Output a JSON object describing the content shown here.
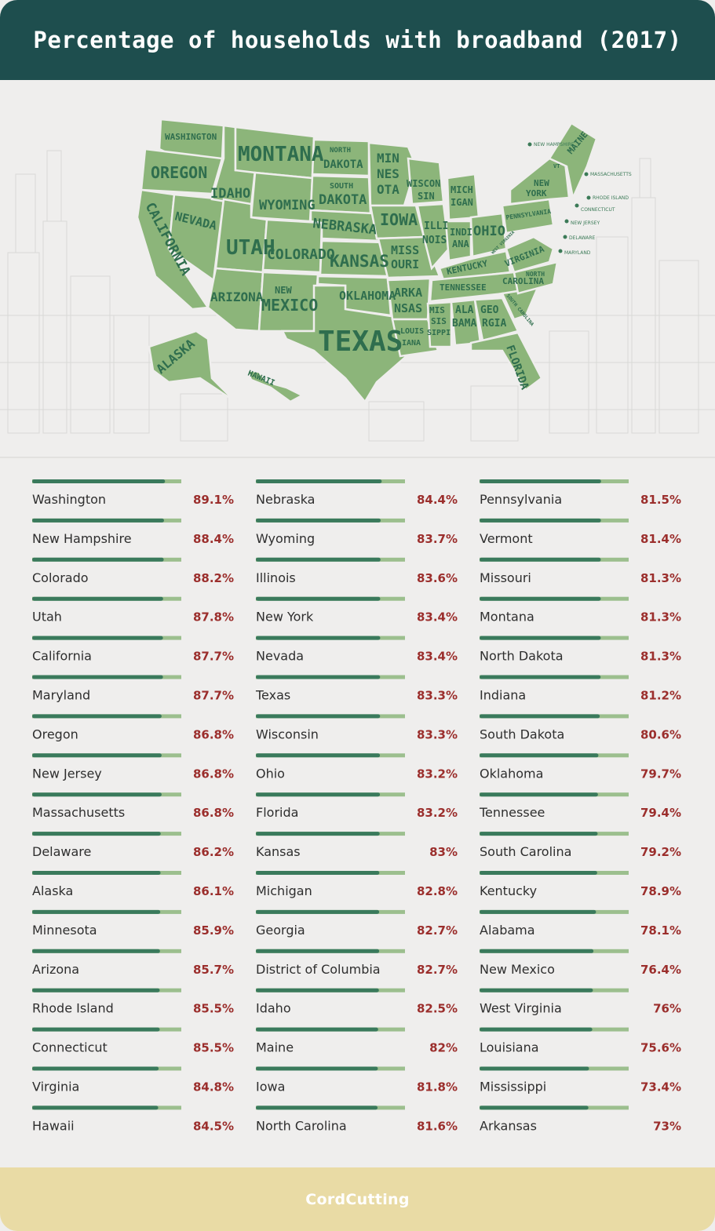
{
  "header": {
    "title": "Percentage of households with broadband (2017)"
  },
  "map": {
    "state_labels": {
      "washington": "WASHINGTON",
      "oregon": "OREGON",
      "california": "CALIFORNIA",
      "idaho": "IDAHO",
      "nevada": "NEVADA",
      "montana": "MONTANA",
      "wyoming": "WYOMING",
      "utah": "UTAH",
      "colorado": "COLORADO",
      "arizona": "ARIZONA",
      "new_mexico_1": "NEW",
      "new_mexico_2": "MEXICO",
      "north_dakota_1": "NORTH",
      "north_dakota_2": "DAKOTA",
      "south_dakota_1": "SOUTH",
      "south_dakota_2": "DAKOTA",
      "nebraska": "NEBRASKA",
      "kansas": "KANSAS",
      "oklahoma": "OKLAHOMA",
      "texas": "TEXAS",
      "minnesota_1": "MIN",
      "minnesota_2": "NES",
      "minnesota_3": "OTA",
      "iowa": "IOWA",
      "missouri_1": "MISS",
      "missouri_2": "OURI",
      "arkansas_1": "ARKA",
      "arkansas_2": "NSAS",
      "louisiana_1": "LOUIS",
      "louisiana_2": "IANA",
      "wisconsin_1": "WISCON",
      "wisconsin_2": "SIN",
      "illinois_1": "ILLI",
      "illinois_2": "NOIS",
      "michigan_1": "MICH",
      "michigan_2": "IGAN",
      "indiana_1": "INDI",
      "indiana_2": "ANA",
      "ohio": "OHIO",
      "kentucky": "KENTUCKY",
      "tennessee": "TENNESSEE",
      "mississippi_1": "MIS",
      "mississippi_2": "SIS",
      "mississippi_3": "SIPPI",
      "alabama_1": "ALA",
      "alabama_2": "BAMA",
      "georgia_1": "GEO",
      "georgia_2": "RGIA",
      "florida": "FLORIDA",
      "south_carolina": "SOUTH CAROLINA",
      "north_carolina_1": "NORTH",
      "north_carolina_2": "CAROLINA",
      "virginia": "VIRGINIA",
      "west_virginia": "WEST VIRGINIA",
      "pennsylvania": "PENNSYLVANIA",
      "new_york_1": "NEW",
      "new_york_2": "YORK",
      "vermont": "VT",
      "maine": "MAINE",
      "alaska": "ALASKA",
      "hawaii": "HAWAII"
    },
    "callouts": {
      "new_hampshire": "NEW HAMPSHIRE",
      "massachusetts": "MASSACHUSETTS",
      "rhode_island": "RHODE ISLAND",
      "connecticut": "CONNECTICUT",
      "new_jersey": "NEW JERSEY",
      "delaware": "DELAWARE",
      "maryland": "MARYLAND"
    }
  },
  "colors": {
    "header_bg": "#1e4e4e",
    "bar_fill": "#3a7a5c",
    "bar_track": "#9cbf8e",
    "value_text": "#9b2e2c",
    "map_state": "#8cb57a",
    "footer_bg": "#e9dba5"
  },
  "chart_data": {
    "type": "bar",
    "unit": "%",
    "xlim": [
      0,
      100
    ],
    "rows": [
      {
        "label": "Washington",
        "value": 89.1,
        "display": "89.1%"
      },
      {
        "label": "New Hampshire",
        "value": 88.4,
        "display": "88.4%"
      },
      {
        "label": "Colorado",
        "value": 88.2,
        "display": "88.2%"
      },
      {
        "label": "Utah",
        "value": 87.8,
        "display": "87.8%"
      },
      {
        "label": "California",
        "value": 87.7,
        "display": "87.7%"
      },
      {
        "label": "Maryland",
        "value": 87.7,
        "display": "87.7%"
      },
      {
        "label": "Oregon",
        "value": 86.8,
        "display": "86.8%"
      },
      {
        "label": "New Jersey",
        "value": 86.8,
        "display": "86.8%"
      },
      {
        "label": "Massachusetts",
        "value": 86.8,
        "display": "86.8%"
      },
      {
        "label": "Delaware",
        "value": 86.2,
        "display": "86.2%"
      },
      {
        "label": "Alaska",
        "value": 86.1,
        "display": "86.1%"
      },
      {
        "label": "Minnesota",
        "value": 85.9,
        "display": "85.9%"
      },
      {
        "label": "Arizona",
        "value": 85.7,
        "display": "85.7%"
      },
      {
        "label": "Rhode Island",
        "value": 85.5,
        "display": "85.5%"
      },
      {
        "label": "Connecticut",
        "value": 85.5,
        "display": "85.5%"
      },
      {
        "label": "Virginia",
        "value": 84.8,
        "display": "84.8%"
      },
      {
        "label": "Hawaii",
        "value": 84.5,
        "display": "84.5%"
      },
      {
        "label": "Nebraska",
        "value": 84.4,
        "display": "84.4%"
      },
      {
        "label": "Wyoming",
        "value": 83.7,
        "display": "83.7%"
      },
      {
        "label": "Illinois",
        "value": 83.6,
        "display": "83.6%"
      },
      {
        "label": "New York",
        "value": 83.4,
        "display": "83.4%"
      },
      {
        "label": "Nevada",
        "value": 83.4,
        "display": "83.4%"
      },
      {
        "label": "Texas",
        "value": 83.3,
        "display": "83.3%"
      },
      {
        "label": "Wisconsin",
        "value": 83.3,
        "display": "83.3%"
      },
      {
        "label": "Ohio",
        "value": 83.2,
        "display": "83.2%"
      },
      {
        "label": "Florida",
        "value": 83.2,
        "display": "83.2%"
      },
      {
        "label": "Kansas",
        "value": 83,
        "display": "83%"
      },
      {
        "label": "Michigan",
        "value": 82.8,
        "display": "82.8%"
      },
      {
        "label": "Georgia",
        "value": 82.7,
        "display": "82.7%"
      },
      {
        "label": "District of Columbia",
        "value": 82.7,
        "display": "82.7%"
      },
      {
        "label": "Idaho",
        "value": 82.5,
        "display": "82.5%"
      },
      {
        "label": "Maine",
        "value": 82,
        "display": "82%"
      },
      {
        "label": "Iowa",
        "value": 81.8,
        "display": "81.8%"
      },
      {
        "label": "North Carolina",
        "value": 81.6,
        "display": "81.6%"
      },
      {
        "label": "Pennsylvania",
        "value": 81.5,
        "display": "81.5%"
      },
      {
        "label": "Vermont",
        "value": 81.4,
        "display": "81.4%"
      },
      {
        "label": "Missouri",
        "value": 81.3,
        "display": "81.3%"
      },
      {
        "label": "Montana",
        "value": 81.3,
        "display": "81.3%"
      },
      {
        "label": "North Dakota",
        "value": 81.3,
        "display": "81.3%"
      },
      {
        "label": "Indiana",
        "value": 81.2,
        "display": "81.2%"
      },
      {
        "label": "South Dakota",
        "value": 80.6,
        "display": "80.6%"
      },
      {
        "label": "Oklahoma",
        "value": 79.7,
        "display": "79.7%"
      },
      {
        "label": "Tennessee",
        "value": 79.4,
        "display": "79.4%"
      },
      {
        "label": "South Carolina",
        "value": 79.2,
        "display": "79.2%"
      },
      {
        "label": "Kentucky",
        "value": 78.9,
        "display": "78.9%"
      },
      {
        "label": "Alabama",
        "value": 78.1,
        "display": "78.1%"
      },
      {
        "label": "New Mexico",
        "value": 76.4,
        "display": "76.4%"
      },
      {
        "label": "West Virginia",
        "value": 76,
        "display": "76%"
      },
      {
        "label": "Louisiana",
        "value": 75.6,
        "display": "75.6%"
      },
      {
        "label": "Mississippi",
        "value": 73.4,
        "display": "73.4%"
      },
      {
        "label": "Arkansas",
        "value": 73,
        "display": "73%"
      }
    ]
  },
  "footer": {
    "logo_text": "CordCutting",
    "logo_icon": "cord-plug-icon"
  }
}
